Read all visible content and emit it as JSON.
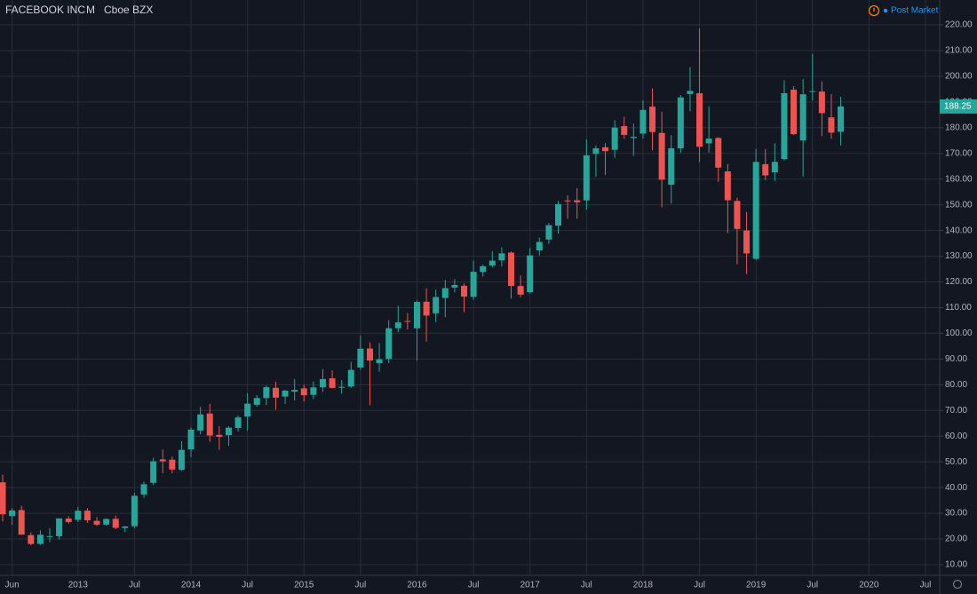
{
  "header": {
    "symbol": "FACEBOOK INC",
    "interval": "M",
    "exchange": "Cboe BZX",
    "session": "Post Market"
  },
  "chart_data": {
    "type": "candlestick",
    "x": [
      "2012-05",
      "2012-06",
      "2012-07",
      "2012-08",
      "2012-09",
      "2012-10",
      "2012-11",
      "2012-12",
      "2013-01",
      "2013-02",
      "2013-03",
      "2013-04",
      "2013-05",
      "2013-06",
      "2013-07",
      "2013-08",
      "2013-09",
      "2013-10",
      "2013-11",
      "2013-12",
      "2014-01",
      "2014-02",
      "2014-03",
      "2014-04",
      "2014-05",
      "2014-06",
      "2014-07",
      "2014-08",
      "2014-09",
      "2014-10",
      "2014-11",
      "2014-12",
      "2015-01",
      "2015-02",
      "2015-03",
      "2015-04",
      "2015-05",
      "2015-06",
      "2015-07",
      "2015-08",
      "2015-09",
      "2015-10",
      "2015-11",
      "2015-12",
      "2016-01",
      "2016-02",
      "2016-03",
      "2016-04",
      "2016-05",
      "2016-06",
      "2016-07",
      "2016-08",
      "2016-09",
      "2016-10",
      "2016-11",
      "2016-12",
      "2017-01",
      "2017-02",
      "2017-03",
      "2017-04",
      "2017-05",
      "2017-06",
      "2017-07",
      "2017-08",
      "2017-09",
      "2017-10",
      "2017-11",
      "2017-12",
      "2018-01",
      "2018-02",
      "2018-03",
      "2018-04",
      "2018-05",
      "2018-06",
      "2018-07",
      "2018-08",
      "2018-09",
      "2018-10",
      "2018-11",
      "2018-12",
      "2019-01",
      "2019-02",
      "2019-03",
      "2019-04",
      "2019-05",
      "2019-06",
      "2019-07",
      "2019-08",
      "2019-09",
      "2019-10"
    ],
    "open": [
      42.05,
      28.9,
      31.25,
      21.5,
      18.08,
      20.82,
      21.08,
      27.94,
      27.44,
      31.0,
      27.05,
      25.6,
      27.85,
      24.27,
      24.97,
      37.3,
      41.85,
      50.97,
      50.85,
      46.9,
      54.83,
      62.2,
      68.8,
      60.5,
      60.4,
      63.2,
      67.6,
      72.2,
      74.8,
      78.8,
      75.4,
      77.3,
      78.6,
      76.1,
      79.0,
      82.5,
      79.0,
      79.3,
      86.7,
      94.1,
      88.4,
      90.0,
      102.0,
      104.8,
      101.95,
      112.3,
      107.8,
      113.75,
      117.8,
      118.5,
      114.2,
      123.85,
      126.4,
      128.4,
      131.4,
      118.4,
      116.0,
      132.25,
      136.5,
      141.9,
      151.7,
      151.75,
      151.7,
      169.8,
      172.4,
      171.4,
      180.6,
      176.0,
      177.7,
      188.2,
      177.95,
      157.8,
      172.0,
      193.1,
      193.4,
      173.9,
      176.0,
      163.0,
      151.5,
      140.0,
      128.99,
      165.8,
      162.6,
      167.8,
      194.8,
      175.0,
      194.0,
      194.05,
      184.0,
      178.4
    ],
    "high": [
      45.0,
      32.0,
      32.9,
      22.5,
      23.4,
      24.25,
      28.0,
      28.9,
      32.5,
      32.0,
      28.5,
      28.0,
      29.1,
      25.0,
      37.96,
      42.3,
      51.6,
      54.8,
      52.1,
      58.0,
      63.4,
      71.4,
      72.6,
      63.9,
      63.9,
      68.0,
      76.7,
      75.99,
      79.7,
      81.2,
      78.0,
      82.2,
      80.0,
      81.3,
      86.1,
      85.6,
      81.8,
      88.9,
      99.2,
      96.5,
      96.2,
      105.1,
      110.7,
      107.9,
      112.8,
      117.6,
      116.99,
      120.8,
      121.1,
      119.4,
      128.3,
      126.7,
      131.98,
      133.5,
      131.9,
      122.5,
      133.1,
      137.2,
      142.9,
      151.5,
      153.7,
      156.5,
      175.5,
      173.1,
      174.0,
      182.9,
      184.25,
      181.5,
      190.7,
      195.3,
      186.1,
      177.1,
      192.7,
      203.55,
      218.6,
      188.3,
      176.3,
      165.9,
      152.8,
      147.2,
      171.7,
      171.7,
      173.9,
      198.5,
      196.2,
      198.9,
      208.66,
      198.0,
      193.0,
      192.0
    ],
    "low": [
      26.8,
      25.5,
      21.6,
      17.55,
      17.7,
      18.8,
      19.8,
      25.9,
      26.6,
      26.3,
      25.0,
      25.2,
      23.8,
      22.7,
      24.3,
      36.0,
      41.0,
      45.5,
      45.5,
      46.5,
      51.85,
      60.7,
      57.8,
      54.7,
      56.3,
      61.8,
      62.2,
      71.5,
      72.1,
      70.3,
      72.5,
      73.9,
      73.5,
      74.4,
      77.2,
      78.6,
      76.5,
      78.8,
      85.8,
      72.0,
      85.0,
      88.4,
      100.5,
      101.5,
      89.4,
      96.8,
      104.4,
      106.3,
      115.9,
      108.2,
      112.97,
      122.1,
      125.6,
      126.0,
      113.55,
      114.0,
      115.5,
      130.3,
      134.8,
      138.8,
      144.6,
      144.6,
      148.1,
      160.9,
      161.6,
      168.3,
      175.7,
      169.0,
      175.8,
      171.3,
      149.0,
      150.5,
      170.2,
      186.4,
      166.6,
      170.3,
      158.9,
      139.0,
      126.85,
      123.02,
      128.56,
      159.6,
      159.3,
      167.3,
      177.2,
      161.0,
      190.6,
      176.7,
      175.7,
      173.1
    ],
    "close": [
      29.6,
      31.1,
      21.7,
      18.06,
      21.66,
      21.11,
      28.0,
      26.62,
      30.98,
      27.25,
      25.58,
      27.77,
      24.35,
      24.88,
      36.8,
      41.29,
      50.23,
      50.21,
      47.01,
      54.65,
      62.57,
      68.46,
      60.24,
      59.78,
      63.3,
      67.29,
      72.65,
      74.82,
      79.04,
      74.99,
      77.7,
      78.02,
      75.91,
      78.97,
      82.22,
      78.77,
      79.19,
      85.77,
      94.01,
      89.43,
      89.9,
      101.97,
      104.24,
      104.66,
      112.21,
      106.92,
      114.1,
      117.58,
      118.81,
      114.28,
      123.94,
      126.12,
      128.27,
      131.09,
      118.42,
      115.05,
      130.32,
      135.54,
      142.05,
      150.25,
      151.46,
      150.98,
      169.25,
      171.97,
      170.87,
      180.06,
      177.18,
      176.46,
      186.89,
      178.32,
      159.79,
      172.0,
      191.78,
      194.32,
      172.58,
      175.73,
      164.46,
      151.79,
      140.61,
      131.09,
      166.69,
      161.45,
      166.69,
      193.4,
      177.47,
      193.0,
      194.23,
      185.67,
      178.08,
      188.25
    ],
    "up_color": "#26a69a",
    "down_color": "#ef5350",
    "xlim": [
      "2012-05",
      "2020-08"
    ],
    "xticks": [
      {
        "value": "2012-06",
        "label": "Jun"
      },
      {
        "value": "2013-01",
        "label": "2013"
      },
      {
        "value": "2013-07",
        "label": "Jul"
      },
      {
        "value": "2014-01",
        "label": "2014"
      },
      {
        "value": "2014-07",
        "label": "Jul"
      },
      {
        "value": "2015-01",
        "label": "2015"
      },
      {
        "value": "2015-07",
        "label": "Jul"
      },
      {
        "value": "2016-01",
        "label": "2016"
      },
      {
        "value": "2016-07",
        "label": "Jul"
      },
      {
        "value": "2017-01",
        "label": "2017"
      },
      {
        "value": "2017-07",
        "label": "Jul"
      },
      {
        "value": "2018-01",
        "label": "2018"
      },
      {
        "value": "2018-07",
        "label": "Jul"
      },
      {
        "value": "2019-01",
        "label": "2019"
      },
      {
        "value": "2019-07",
        "label": "Jul"
      },
      {
        "value": "2020-01",
        "label": "2020"
      },
      {
        "value": "2020-07",
        "label": "Jul"
      }
    ],
    "ylim": [
      5.85,
      229.67
    ],
    "yticks": [
      {
        "value": 10,
        "label": "10.00"
      },
      {
        "value": 20,
        "label": "20.00"
      },
      {
        "value": 30,
        "label": "30.00"
      },
      {
        "value": 40,
        "label": "40.00"
      },
      {
        "value": 50,
        "label": "50.00"
      },
      {
        "value": 60,
        "label": "60.00"
      },
      {
        "value": 70,
        "label": "70.00"
      },
      {
        "value": 80,
        "label": "80.00"
      },
      {
        "value": 90,
        "label": "90.00"
      },
      {
        "value": 100,
        "label": "100.00"
      },
      {
        "value": 110,
        "label": "110.00"
      },
      {
        "value": 120,
        "label": "120.00"
      },
      {
        "value": 130,
        "label": "130.00"
      },
      {
        "value": 140,
        "label": "140.00"
      },
      {
        "value": 150,
        "label": "150.00"
      },
      {
        "value": 160,
        "label": "160.00"
      },
      {
        "value": 170,
        "label": "170.00"
      },
      {
        "value": 180,
        "label": "180.00"
      },
      {
        "value": 190,
        "label": "190.00"
      },
      {
        "value": 200,
        "label": "200.00"
      },
      {
        "value": 210,
        "label": "210.00"
      },
      {
        "value": 220,
        "label": "220.00"
      }
    ],
    "last_label": "188.25",
    "grid": true
  }
}
